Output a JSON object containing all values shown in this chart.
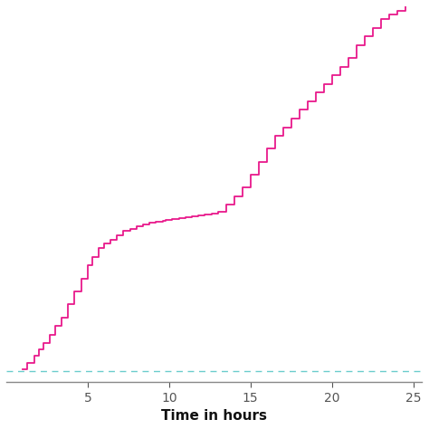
{
  "title": "",
  "xlabel": "Time in hours",
  "ylabel": "",
  "line_color": "#E8198B",
  "flat_line_color": "#5BC8C8",
  "flat_line_y": 0.005,
  "background_color": "#ffffff",
  "xlim": [
    0,
    25.5
  ],
  "ylim": [
    -0.02,
    0.85
  ],
  "xticks": [
    5,
    10,
    15,
    20,
    25
  ],
  "step_x": [
    1.0,
    1.3,
    1.7,
    2.0,
    2.3,
    2.7,
    3.0,
    3.4,
    3.8,
    4.2,
    4.6,
    5.0,
    5.3,
    5.7,
    6.0,
    6.4,
    6.8,
    7.2,
    7.6,
    8.0,
    8.4,
    8.8,
    9.2,
    9.6,
    9.8,
    10.2,
    10.6,
    11.0,
    11.4,
    11.8,
    12.2,
    12.6,
    13.0,
    13.5,
    14.0,
    14.5,
    15.0,
    15.5,
    16.0,
    16.5,
    17.0,
    17.5,
    18.0,
    18.5,
    19.0,
    19.5,
    20.0,
    20.5,
    21.0,
    21.5,
    22.0,
    22.5,
    23.0,
    23.5,
    24.0,
    24.5
  ],
  "step_y": [
    0.01,
    0.025,
    0.04,
    0.055,
    0.07,
    0.09,
    0.11,
    0.13,
    0.16,
    0.19,
    0.22,
    0.25,
    0.27,
    0.29,
    0.3,
    0.31,
    0.32,
    0.33,
    0.335,
    0.34,
    0.345,
    0.35,
    0.352,
    0.354,
    0.356,
    0.358,
    0.36,
    0.362,
    0.364,
    0.366,
    0.368,
    0.37,
    0.375,
    0.39,
    0.41,
    0.43,
    0.46,
    0.49,
    0.52,
    0.55,
    0.57,
    0.59,
    0.61,
    0.63,
    0.65,
    0.67,
    0.69,
    0.71,
    0.73,
    0.76,
    0.78,
    0.8,
    0.82,
    0.83,
    0.84,
    0.85
  ]
}
